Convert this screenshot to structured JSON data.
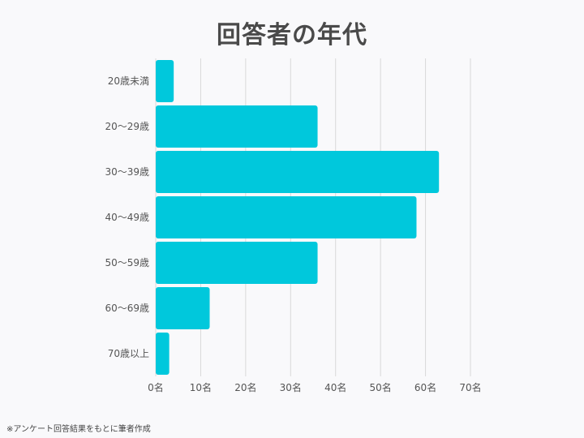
{
  "title": "回答者の年代",
  "source_note": "※アンケート回答結果をもとに筆者作成",
  "colors": {
    "bar": "#00c8dc",
    "grid": "#d9d9d9",
    "background": "#f9f9fb"
  },
  "chart_data": {
    "type": "bar",
    "orientation": "horizontal",
    "title": "回答者の年代",
    "categories": [
      "20歳未満",
      "20〜29歳",
      "30〜39歳",
      "40〜49歳",
      "50〜59歳",
      "60〜69歳",
      "70歳以上"
    ],
    "values": [
      4,
      36,
      63,
      58,
      36,
      12,
      3
    ],
    "xlim": [
      0,
      70
    ],
    "x_ticks": [
      0,
      10,
      20,
      30,
      40,
      50,
      60,
      70
    ],
    "x_tick_labels": [
      "0名",
      "10名",
      "20名",
      "30名",
      "40名",
      "50名",
      "60名",
      "70名"
    ],
    "grid": "vertical",
    "legend": "none"
  }
}
